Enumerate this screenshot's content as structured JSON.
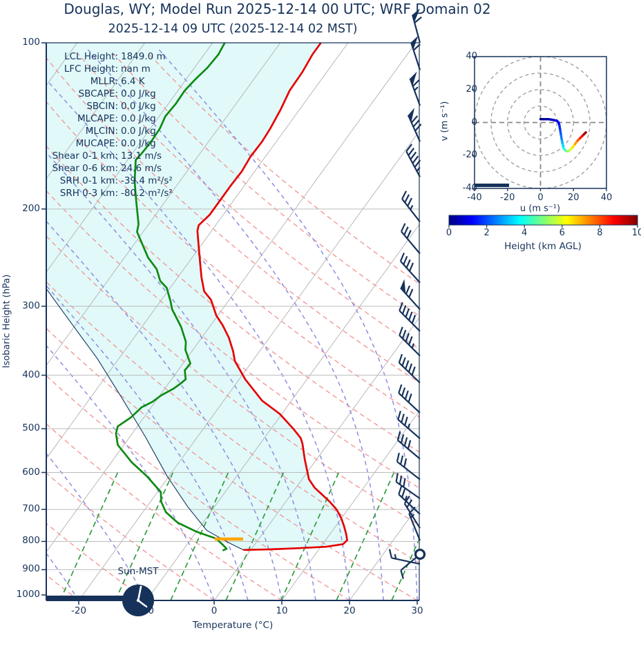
{
  "title": "Douglas, WY; Model Run 2025-12-14 00 UTC; WRF Domain 02",
  "subtitle": "2025-12-14 09 UTC  (2025-12-14 02 MST)",
  "colors": {
    "accent_navy": "#16325a",
    "temperature_line": "#e50000",
    "dewpoint_line": "#0d8a12",
    "parcel_line": "#16325a",
    "dry_adiabat": "#f29898",
    "moist_adiabat": "#8d8de0",
    "mixing_line": "#2e9e3d",
    "isotherm": "#b0b0b0",
    "gridline": "#bbbbbb",
    "cape_fill": "#e1f9f9",
    "lcl_marker": "#ffa500",
    "barb": "#16325a"
  },
  "stats": {
    "rows": [
      {
        "label": "LCL Height",
        "value": "1849.0 m"
      },
      {
        "label": "LFC Height",
        "value": "nan m"
      },
      {
        "label": "MLLR",
        "value": "6.4 K"
      },
      {
        "label": "SBCAPE",
        "value": "0.0 J/kg"
      },
      {
        "label": "SBCIN",
        "value": "0.0 J/kg"
      },
      {
        "label": "MLCAPE",
        "value": "0.0 J/kg"
      },
      {
        "label": "MLCIN",
        "value": "0.0 J/kg"
      },
      {
        "label": "MUCAPE",
        "value": "0.0 J/kg"
      },
      {
        "label": "Shear 0-1 km",
        "value": "13.1 m/s"
      },
      {
        "label": "Shear 0-6 km",
        "value": "24.6 m/s"
      },
      {
        "label": "SRH 0-1 km",
        "value": "-39.4 m²/s²"
      },
      {
        "label": "SRH 0-3 km",
        "value": "-80.2 m²/s²"
      }
    ]
  },
  "skewt": {
    "xlabel": "Temperature (°C)",
    "ylabel": "Isobaric Height (hPa)",
    "sun_label": "Sun-MST",
    "x_ticks": [
      -20,
      -10,
      0,
      10,
      20,
      30
    ],
    "y_ticks": [
      100,
      200,
      300,
      400,
      500,
      600,
      700,
      800,
      900,
      1000
    ],
    "xlim": [
      -24.8,
      30
    ],
    "ylim": [
      100,
      1023
    ]
  },
  "hodograph": {
    "xlabel": "u (m s⁻¹)",
    "ylabel": "v (m s⁻¹)",
    "x_ticks": [
      -40,
      -20,
      0,
      20,
      40
    ],
    "y_ticks": [
      40,
      20,
      0,
      -20,
      -40
    ],
    "lim": [
      -40,
      40
    ],
    "ring_radii": [
      10,
      20,
      30,
      40
    ]
  },
  "colorbar": {
    "label": "Height (km AGL)",
    "ticks": [
      0,
      2,
      4,
      6,
      8,
      10
    ],
    "min": 0,
    "max": 10
  },
  "chart_data": {
    "type": "skewt-log-p sounding with hodograph",
    "temperature_profile": [
      [
        100,
        -44.0
      ],
      [
        105,
        -44.0
      ],
      [
        113,
        -43.6
      ],
      [
        122,
        -43.5
      ],
      [
        132,
        -42.8
      ],
      [
        143,
        -42.3
      ],
      [
        151,
        -42.1
      ],
      [
        161,
        -42.2
      ],
      [
        171,
        -41.9
      ],
      [
        181,
        -42.0
      ],
      [
        192,
        -42.0
      ],
      [
        205,
        -42.0
      ],
      [
        214,
        -42.5
      ],
      [
        219,
        -42.1
      ],
      [
        234,
        -40.2
      ],
      [
        250,
        -38.3
      ],
      [
        266,
        -36.5
      ],
      [
        282,
        -34.6
      ],
      [
        292,
        -32.7
      ],
      [
        312,
        -30.2
      ],
      [
        325,
        -28.2
      ],
      [
        342,
        -26.0
      ],
      [
        362,
        -23.9
      ],
      [
        377,
        -22.6
      ],
      [
        407,
        -19.1
      ],
      [
        445,
        -14.3
      ],
      [
        470,
        -10.3
      ],
      [
        501,
        -6.6
      ],
      [
        520,
        -4.6
      ],
      [
        533,
        -3.7
      ],
      [
        567,
        -1.8
      ],
      [
        595,
        -0.2
      ],
      [
        617,
        1.0
      ],
      [
        640,
        2.8
      ],
      [
        659,
        4.7
      ],
      [
        678,
        6.5
      ],
      [
        701,
        8.4
      ],
      [
        725,
        9.9
      ],
      [
        750,
        11.2
      ],
      [
        776,
        12.4
      ],
      [
        796,
        13.2
      ],
      [
        809,
        13.0
      ],
      [
        818,
        10.8
      ],
      [
        823,
        6.8
      ],
      [
        827,
        2.7
      ],
      [
        829,
        -1.1
      ]
    ],
    "dewpoint_profile": [
      [
        100,
        -58.2
      ],
      [
        105,
        -57.9
      ],
      [
        111,
        -58.1
      ],
      [
        116,
        -58.6
      ],
      [
        122,
        -59.0
      ],
      [
        129,
        -58.9
      ],
      [
        136,
        -59.1
      ],
      [
        143,
        -58.6
      ],
      [
        150,
        -58.5
      ],
      [
        158,
        -58.6
      ],
      [
        163,
        -58.8
      ],
      [
        178,
        -56.7
      ],
      [
        193,
        -54.4
      ],
      [
        213,
        -51.5
      ],
      [
        220,
        -50.9
      ],
      [
        245,
        -46.5
      ],
      [
        257,
        -44.0
      ],
      [
        270,
        -42.2
      ],
      [
        278,
        -40.5
      ],
      [
        294,
        -38.5
      ],
      [
        304,
        -37.4
      ],
      [
        316,
        -35.7
      ],
      [
        327,
        -34.2
      ],
      [
        348,
        -31.9
      ],
      [
        360,
        -31.1
      ],
      [
        381,
        -28.9
      ],
      [
        392,
        -29.0
      ],
      [
        407,
        -27.9
      ],
      [
        414,
        -28.2
      ],
      [
        423,
        -28.7
      ],
      [
        435,
        -29.8
      ],
      [
        447,
        -30.4
      ],
      [
        457,
        -31.4
      ],
      [
        477,
        -31.9
      ],
      [
        495,
        -32.9
      ],
      [
        510,
        -32.4
      ],
      [
        535,
        -30.9
      ],
      [
        575,
        -27.0
      ],
      [
        610,
        -23.2
      ],
      [
        651,
        -19.5
      ],
      [
        678,
        -18.4
      ],
      [
        708,
        -16.6
      ],
      [
        740,
        -13.7
      ],
      [
        768,
        -10.0
      ],
      [
        784,
        -7.4
      ],
      [
        790,
        -6.4
      ],
      [
        811,
        -4.7
      ],
      [
        825,
        -3.7
      ],
      [
        831,
        -4.1
      ]
    ],
    "parcel_profile": [
      [
        280,
        -58.0
      ],
      [
        324,
        -50.5
      ],
      [
        373,
        -43.2
      ],
      [
        442,
        -35.1
      ],
      [
        516,
        -27.8
      ],
      [
        609,
        -20.3
      ],
      [
        693,
        -13.9
      ],
      [
        764,
        -8.6
      ],
      [
        803,
        -4.2
      ],
      [
        829,
        -1.1
      ]
    ],
    "lcl": {
      "pressure": 792,
      "temperature": -4.4,
      "marker_halfwidth_degC": 2.1
    },
    "wind_barbs": [
      {
        "p": 100,
        "pennants": 1,
        "full": 1,
        "half": 0,
        "angle": 15
      },
      {
        "p": 112,
        "pennants": 1,
        "full": 1,
        "half": 0,
        "angle": 18
      },
      {
        "p": 130,
        "pennants": 1,
        "full": 1,
        "half": 1,
        "angle": 20
      },
      {
        "p": 151,
        "pennants": 1,
        "full": 3,
        "half": 0,
        "angle": 24
      },
      {
        "p": 175,
        "pennants": 0,
        "full": 5,
        "half": 1,
        "angle": 28
      },
      {
        "p": 211,
        "pennants": 0,
        "full": 3,
        "half": 1,
        "angle": 38
      },
      {
        "p": 241,
        "pennants": 0,
        "full": 3,
        "half": 0,
        "angle": 40
      },
      {
        "p": 272,
        "pennants": 0,
        "full": 4,
        "half": 0,
        "angle": 42
      },
      {
        "p": 304,
        "pennants": 1,
        "full": 2,
        "half": 0,
        "angle": 42
      },
      {
        "p": 333,
        "pennants": 0,
        "full": 5,
        "half": 0,
        "angle": 45
      },
      {
        "p": 369,
        "pennants": 0,
        "full": 4,
        "half": 1,
        "angle": 45
      },
      {
        "p": 413,
        "pennants": 0,
        "full": 5,
        "half": 0,
        "angle": 46
      },
      {
        "p": 468,
        "pennants": 0,
        "full": 4,
        "half": 0,
        "angle": 47
      },
      {
        "p": 521,
        "pennants": 0,
        "full": 3,
        "half": 1,
        "angle": 49
      },
      {
        "p": 567,
        "pennants": 0,
        "full": 4,
        "half": 0,
        "angle": 50
      },
      {
        "p": 618,
        "pennants": 0,
        "full": 3,
        "half": 0,
        "angle": 52
      },
      {
        "p": 669,
        "pennants": 0,
        "full": 3,
        "half": 0,
        "angle": 55
      },
      {
        "p": 714,
        "pennants": 0,
        "full": 2,
        "half": 1,
        "angle": 47
      },
      {
        "p": 757,
        "pennants": 0,
        "full": 2,
        "half": 0,
        "angle": 32
      },
      {
        "p": 797,
        "pennants": 0,
        "full": 1,
        "half": 1,
        "angle": 22
      },
      {
        "p": 844,
        "pennants": 0,
        "full": 1,
        "half": 0,
        "angle": 130,
        "circle": true
      },
      {
        "p": 879,
        "pennants": 0,
        "full": 1,
        "half": 1,
        "angle": 78
      }
    ],
    "hodograph_trace": {
      "u": [
        0,
        2,
        5,
        8,
        10,
        11,
        11.5,
        12,
        12.5,
        13,
        13.5,
        14,
        15,
        16.5,
        18,
        19.5,
        21,
        22.5,
        24,
        25.5,
        26.5,
        27.5
      ],
      "v": [
        2,
        2,
        2,
        1.5,
        1,
        0,
        -2,
        -5,
        -8,
        -11,
        -13.5,
        -15.5,
        -17,
        -17.5,
        -16.5,
        -15,
        -13,
        -11,
        -9.5,
        -8,
        -7,
        -6
      ],
      "height_km": [
        0,
        0.2,
        0.4,
        0.7,
        0.9,
        1.1,
        1.4,
        1.8,
        2.2,
        2.7,
        3.2,
        3.7,
        4.3,
        5,
        5.6,
        6.2,
        6.9,
        7.5,
        8.2,
        8.8,
        9.4,
        10
      ]
    }
  }
}
